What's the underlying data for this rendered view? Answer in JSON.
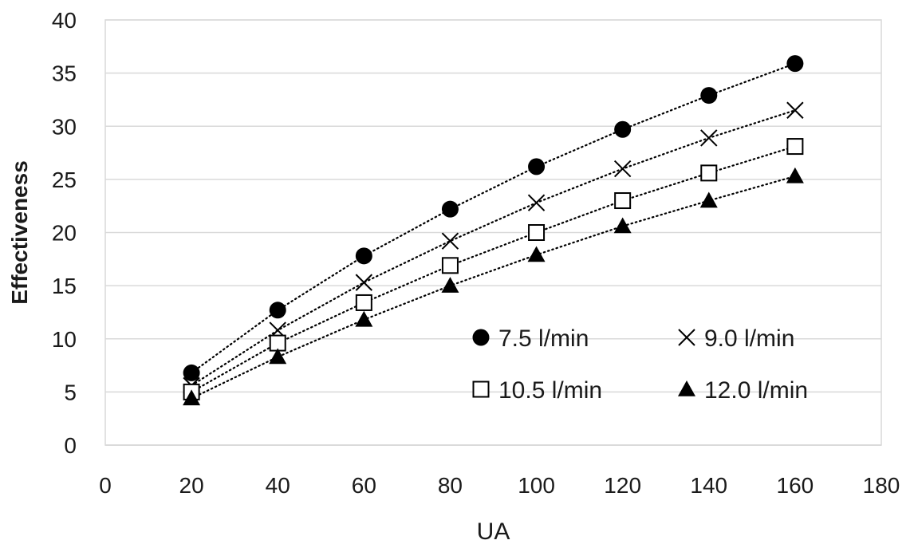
{
  "chart_data": {
    "type": "scatter",
    "title": "",
    "xlabel": "UA",
    "ylabel": "Effectiveness",
    "xlim": [
      0,
      180
    ],
    "ylim": [
      0,
      40
    ],
    "xticks": [
      0,
      20,
      40,
      60,
      80,
      100,
      120,
      140,
      160,
      180
    ],
    "yticks": [
      0,
      5,
      10,
      15,
      20,
      25,
      30,
      35,
      40
    ],
    "grid": "horizontal",
    "trendline": "dotted, one per series",
    "legend_position": "inside lower-right, 2 columns",
    "x": [
      20,
      40,
      60,
      80,
      100,
      120,
      140,
      160
    ],
    "series": [
      {
        "name": "7.5 l/min",
        "marker": "filled-circle",
        "values": [
          6.8,
          12.7,
          17.8,
          22.2,
          26.2,
          29.7,
          32.9,
          35.9
        ]
      },
      {
        "name": "9.0 l/min",
        "marker": "cross",
        "values": [
          5.6,
          10.8,
          15.3,
          19.2,
          22.8,
          26.0,
          28.9,
          31.5
        ]
      },
      {
        "name": "10.5 l/min",
        "marker": "open-square",
        "values": [
          5.0,
          9.6,
          13.4,
          16.9,
          20.0,
          23.0,
          25.6,
          28.1
        ]
      },
      {
        "name": "12.0 l/min",
        "marker": "filled-triangle",
        "values": [
          4.4,
          8.3,
          11.8,
          15.0,
          17.9,
          20.6,
          23.0,
          25.3
        ]
      }
    ],
    "color": "#000000",
    "gridline_color": "#d9d9d9"
  }
}
